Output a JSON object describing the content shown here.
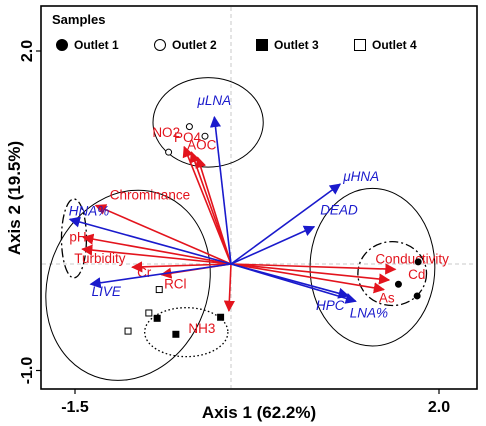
{
  "chart_data": {
    "type": "scatter",
    "xlabel": "Axis 1 (62.2%)",
    "ylabel": "Axis 2 (19.5%)",
    "xlim": [
      -1.7,
      2.1
    ],
    "ylim": [
      -1.2,
      2.15
    ],
    "x_ticks": [
      {
        "value": -1.5,
        "label": "-1.5"
      },
      {
        "value": 2.0,
        "label": "2.0"
      }
    ],
    "y_ticks": [
      {
        "value": -1.0,
        "label": "-1.0"
      },
      {
        "value": 2.0,
        "label": "2.0"
      }
    ],
    "reference_lines": {
      "x": 0,
      "y": 0,
      "style": "dashed",
      "color": "#c8c8c8"
    },
    "legend": {
      "title": "Samples",
      "placement": "top",
      "entries": [
        {
          "label": "Outlet 1",
          "marker": "filled-circle"
        },
        {
          "label": "Outlet 2",
          "marker": "open-circle"
        },
        {
          "label": "Outlet 3",
          "marker": "filled-square"
        },
        {
          "label": "Outlet 4",
          "marker": "open-square"
        }
      ]
    },
    "samples": [
      {
        "group": "Outlet 1",
        "marker": "filled-circle",
        "points": [
          [
            1.8,
            0.02
          ],
          [
            1.61,
            -0.19
          ],
          [
            1.79,
            -0.3
          ]
        ]
      },
      {
        "group": "Outlet 2",
        "marker": "open-circle",
        "points": [
          [
            -0.4,
            1.29
          ],
          [
            -0.25,
            1.2
          ],
          [
            -0.6,
            1.05
          ]
        ]
      },
      {
        "group": "Outlet 3",
        "marker": "filled-square",
        "points": [
          [
            -0.71,
            -0.51
          ],
          [
            -0.53,
            -0.66
          ],
          [
            -0.1,
            -0.5
          ]
        ]
      },
      {
        "group": "Outlet 4",
        "marker": "open-square",
        "points": [
          [
            -0.69,
            -0.24
          ],
          [
            -0.79,
            -0.46
          ],
          [
            -0.99,
            -0.63
          ]
        ]
      }
    ],
    "environmental_vectors": {
      "color": "#e3141d",
      "vectors": [
        {
          "label": "NO2",
          "x": -0.45,
          "y": 1.1
        },
        {
          "label": "PO4",
          "x": -0.38,
          "y": 1.05
        },
        {
          "label": "AOC",
          "x": -0.32,
          "y": 1.0
        },
        {
          "label": "Chrominance",
          "x": -1.3,
          "y": 0.55
        },
        {
          "label": "pH",
          "x": -1.42,
          "y": 0.25
        },
        {
          "label": "Turbidity",
          "x": -1.43,
          "y": 0.14
        },
        {
          "label": "Cr",
          "x": -0.95,
          "y": -0.03
        },
        {
          "label": "RCl",
          "x": -0.67,
          "y": -0.1
        },
        {
          "label": "NH3",
          "x": -0.02,
          "y": -0.44
        },
        {
          "label": "Conductivity",
          "x": 1.58,
          "y": -0.05
        },
        {
          "label": "Cd",
          "x": 1.52,
          "y": -0.15
        },
        {
          "label": "As",
          "x": 1.47,
          "y": -0.24
        }
      ]
    },
    "community_vectors": {
      "color": "#1a1acc",
      "vectors": [
        {
          "label": "μLNA",
          "x": -0.16,
          "y": 1.38
        },
        {
          "label": "μHNA",
          "x": 1.05,
          "y": 0.75
        },
        {
          "label": "DEAD",
          "x": 0.8,
          "y": 0.35
        },
        {
          "label": "HNA%",
          "x": -1.55,
          "y": 0.42
        },
        {
          "label": "LIVE",
          "x": -1.35,
          "y": -0.19
        },
        {
          "label": "HPC",
          "x": 1.13,
          "y": -0.3
        },
        {
          "label": "LNA%",
          "x": 1.2,
          "y": -0.35
        }
      ]
    },
    "group_ellipses": [
      {
        "cx": -0.22,
        "cy": 1.33,
        "rx": 0.53,
        "ry": 0.42,
        "style": "solid"
      },
      {
        "cx": -0.99,
        "cy": -0.2,
        "rx": 0.77,
        "ry": 0.91,
        "rotation": 20,
        "style": "solid"
      },
      {
        "cx": 1.36,
        "cy": -0.03,
        "rx": 0.6,
        "ry": 0.74,
        "style": "solid"
      },
      {
        "cx": 1.55,
        "cy": -0.09,
        "rx": 0.33,
        "ry": 0.3,
        "style": "dashdot"
      },
      {
        "cx": -1.51,
        "cy": 0.24,
        "rx": 0.12,
        "ry": 0.37,
        "style": "dashdot"
      },
      {
        "cx": -0.43,
        "cy": -0.64,
        "rx": 0.4,
        "ry": 0.23,
        "style": "dotted"
      }
    ]
  }
}
